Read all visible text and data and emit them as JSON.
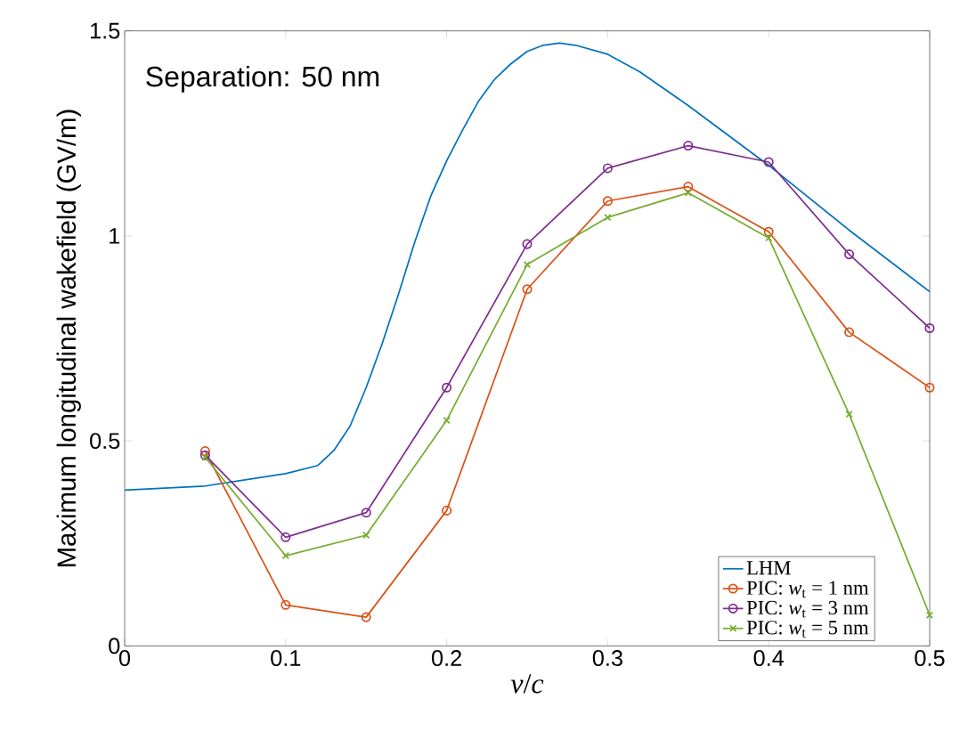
{
  "chart_data": {
    "type": "line",
    "xlabel": "*v*/*c*",
    "ylabel": "Maximum longitudinal wakefield (GV/m)",
    "annotations": [
      "Separation: 50 nm"
    ],
    "xlim": [
      0,
      0.5
    ],
    "ylim": [
      0,
      1.5
    ],
    "xticks": [
      0,
      0.1,
      0.2,
      0.3,
      0.4,
      0.5
    ],
    "yticks": [
      0,
      0.5,
      1,
      1.5
    ],
    "grid": false,
    "legend": "bottom right",
    "series": [
      {
        "name": "LHM",
        "color": "#0072bd",
        "marker": "none",
        "x": [
          0,
          0.05,
          0.1,
          0.12,
          0.13,
          0.14,
          0.15,
          0.16,
          0.17,
          0.18,
          0.19,
          0.2,
          0.21,
          0.22,
          0.23,
          0.24,
          0.25,
          0.26,
          0.27,
          0.28,
          0.3,
          0.32,
          0.35,
          0.4,
          0.45,
          0.5
        ],
        "values": [
          0.38,
          0.39,
          0.42,
          0.44,
          0.477,
          0.536,
          0.63,
          0.738,
          0.857,
          0.983,
          1.096,
          1.183,
          1.259,
          1.33,
          1.383,
          1.42,
          1.45,
          1.465,
          1.47,
          1.465,
          1.443,
          1.4,
          1.318,
          1.172,
          1.014,
          0.864
        ]
      },
      {
        "name": "PIC: *w*$_{t}$ = 1 nm",
        "color": "#d95319",
        "marker": "circle",
        "x": [
          0.05,
          0.1,
          0.15,
          0.2,
          0.25,
          0.3,
          0.35,
          0.4,
          0.45,
          0.5
        ],
        "values": [
          0.475,
          0.1,
          0.07,
          0.33,
          0.87,
          1.085,
          1.12,
          1.01,
          0.765,
          0.63
        ]
      },
      {
        "name": "PIC: *w*$_{t}$ = 3 nm",
        "color": "#7e2f8e",
        "marker": "circle",
        "x": [
          0.05,
          0.1,
          0.15,
          0.2,
          0.25,
          0.3,
          0.35,
          0.4,
          0.45,
          0.5
        ],
        "values": [
          0.465,
          0.265,
          0.325,
          0.63,
          0.98,
          1.165,
          1.22,
          1.18,
          0.955,
          0.775
        ]
      },
      {
        "name": "PIC: *w*$_{t}$ = 5 nm",
        "color": "#77ac30",
        "marker": "cross",
        "x": [
          0.05,
          0.1,
          0.15,
          0.2,
          0.25,
          0.3,
          0.35,
          0.4,
          0.45,
          0.5
        ],
        "values": [
          0.46,
          0.22,
          0.27,
          0.55,
          0.93,
          1.045,
          1.105,
          0.995,
          0.565,
          0.075
        ]
      }
    ]
  }
}
